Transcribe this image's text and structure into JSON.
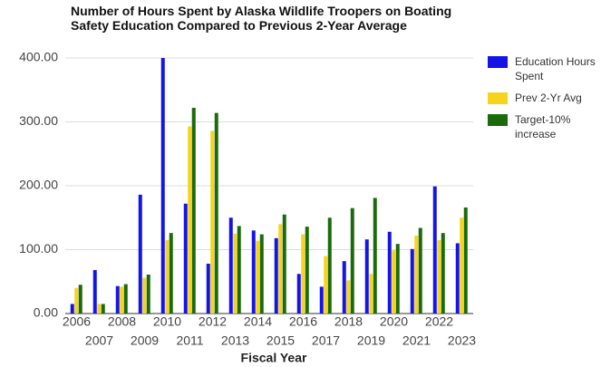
{
  "chart_data": {
    "type": "bar",
    "title": "Number of Hours Spent by Alaska Wildlife Troopers on Boating Safety Education Compared to Previous 2-Year Average",
    "x_label": "Fiscal Year",
    "categories": [
      "2006",
      "2007",
      "2008",
      "2009",
      "2010",
      "2011",
      "2012",
      "2013",
      "2014",
      "2015",
      "2016",
      "2017",
      "2018",
      "2019",
      "2020",
      "2021",
      "2022",
      "2023"
    ],
    "series": [
      {
        "name": "Education Hours Spent",
        "color": "#1414e6",
        "values": [
          15,
          68,
          43,
          186,
          400,
          172,
          78,
          150,
          130,
          118,
          62,
          42,
          82,
          116,
          128,
          101,
          199,
          110
        ]
      },
      {
        "name": "Prev 2-Yr Avg",
        "color": "#f7d31e",
        "values": [
          40,
          15,
          42,
          56,
          115,
          293,
          286,
          125,
          114,
          140,
          124,
          90,
          52,
          62,
          99,
          122,
          115,
          150
        ]
      },
      {
        "name": "Target-10% increase",
        "color": "#1b6b0c",
        "values": [
          45,
          15,
          46,
          61,
          126,
          322,
          314,
          137,
          124,
          155,
          136,
          150,
          165,
          181,
          109,
          134,
          126,
          166
        ]
      }
    ],
    "ylim": [
      0,
      400
    ],
    "yticks": [
      {
        "value": 0,
        "label": "0.00"
      },
      {
        "value": 100,
        "label": "100.00"
      },
      {
        "value": 200,
        "label": "200.00"
      },
      {
        "value": 300,
        "label": "300.00"
      },
      {
        "value": 400,
        "label": "400.00"
      }
    ],
    "grid": true,
    "legend": "right"
  }
}
